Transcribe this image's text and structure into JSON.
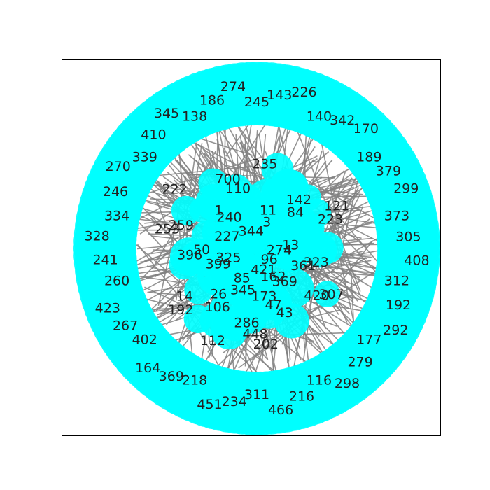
{
  "chart_data": {
    "type": "network",
    "title": "",
    "grid": false,
    "node_color": "#00ffff",
    "edge_color": "#808080",
    "label_color": "#222222",
    "frame_color": "#000000",
    "nodes": [
      {
        "id": "96",
        "ring": "inner"
      },
      {
        "id": "369",
        "ring": "inner"
      },
      {
        "id": "43",
        "ring": "inner"
      },
      {
        "id": "202",
        "ring": "inner"
      },
      {
        "id": "345",
        "ring": "inner"
      },
      {
        "id": "106",
        "ring": "inner"
      },
      {
        "id": "192",
        "ring": "inner"
      },
      {
        "id": "399",
        "ring": "inner"
      },
      {
        "id": "396",
        "ring": "inner"
      },
      {
        "id": "253",
        "ring": "inner"
      },
      {
        "id": "227",
        "ring": "inner"
      },
      {
        "id": "1",
        "ring": "inner"
      },
      {
        "id": "700",
        "ring": "inner"
      },
      {
        "id": "344",
        "ring": "inner"
      },
      {
        "id": "11",
        "ring": "inner"
      },
      {
        "id": "142",
        "ring": "inner"
      },
      {
        "id": "121",
        "ring": "inner"
      },
      {
        "id": "13",
        "ring": "inner"
      },
      {
        "id": "323",
        "ring": "inner"
      },
      {
        "id": "307",
        "ring": "inner"
      },
      {
        "id": "162",
        "ring": "inner"
      },
      {
        "id": "47",
        "ring": "inner"
      },
      {
        "id": "448",
        "ring": "inner"
      },
      {
        "id": "85",
        "ring": "inner"
      },
      {
        "id": "26",
        "ring": "inner"
      },
      {
        "id": "14",
        "ring": "inner"
      },
      {
        "id": "325",
        "ring": "inner"
      },
      {
        "id": "50",
        "ring": "inner"
      },
      {
        "id": "259",
        "ring": "inner"
      },
      {
        "id": "222",
        "ring": "inner"
      },
      {
        "id": "240",
        "ring": "inner"
      },
      {
        "id": "110",
        "ring": "inner"
      },
      {
        "id": "235",
        "ring": "inner"
      },
      {
        "id": "3",
        "ring": "inner"
      },
      {
        "id": "84",
        "ring": "inner"
      },
      {
        "id": "223",
        "ring": "inner"
      },
      {
        "id": "274",
        "ring": "inner"
      },
      {
        "id": "361",
        "ring": "inner"
      },
      {
        "id": "420",
        "ring": "inner"
      },
      {
        "id": "421",
        "ring": "inner"
      },
      {
        "id": "173",
        "ring": "inner"
      },
      {
        "id": "286",
        "ring": "inner"
      },
      {
        "id": "112",
        "ring": "inner"
      },
      {
        "id": "245",
        "ring": "outer"
      },
      {
        "id": "143",
        "ring": "outer"
      },
      {
        "id": "226",
        "ring": "outer"
      },
      {
        "id": "140",
        "ring": "outer"
      },
      {
        "id": "342",
        "ring": "outer"
      },
      {
        "id": "170",
        "ring": "outer"
      },
      {
        "id": "189",
        "ring": "outer"
      },
      {
        "id": "379",
        "ring": "outer"
      },
      {
        "id": "299",
        "ring": "outer"
      },
      {
        "id": "373",
        "ring": "outer"
      },
      {
        "id": "305",
        "ring": "outer"
      },
      {
        "id": "408",
        "ring": "outer"
      },
      {
        "id": "312",
        "ring": "outer"
      },
      {
        "id": "192",
        "ring": "outer"
      },
      {
        "id": "292",
        "ring": "outer"
      },
      {
        "id": "177",
        "ring": "outer"
      },
      {
        "id": "279",
        "ring": "outer"
      },
      {
        "id": "298",
        "ring": "outer"
      },
      {
        "id": "116",
        "ring": "outer"
      },
      {
        "id": "216",
        "ring": "outer"
      },
      {
        "id": "466",
        "ring": "outer"
      },
      {
        "id": "311",
        "ring": "outer"
      },
      {
        "id": "234",
        "ring": "outer"
      },
      {
        "id": "451",
        "ring": "outer"
      },
      {
        "id": "218",
        "ring": "outer"
      },
      {
        "id": "369",
        "ring": "outer"
      },
      {
        "id": "164",
        "ring": "outer"
      },
      {
        "id": "402",
        "ring": "outer"
      },
      {
        "id": "267",
        "ring": "outer"
      },
      {
        "id": "423",
        "ring": "outer"
      },
      {
        "id": "260",
        "ring": "outer"
      },
      {
        "id": "241",
        "ring": "outer"
      },
      {
        "id": "328",
        "ring": "outer"
      },
      {
        "id": "334",
        "ring": "outer"
      },
      {
        "id": "246",
        "ring": "outer"
      },
      {
        "id": "270",
        "ring": "outer"
      },
      {
        "id": "339",
        "ring": "outer"
      },
      {
        "id": "410",
        "ring": "outer"
      },
      {
        "id": "345",
        "ring": "outer"
      },
      {
        "id": "138",
        "ring": "outer"
      },
      {
        "id": "186",
        "ring": "outer"
      },
      {
        "id": "274",
        "ring": "outer"
      }
    ]
  }
}
